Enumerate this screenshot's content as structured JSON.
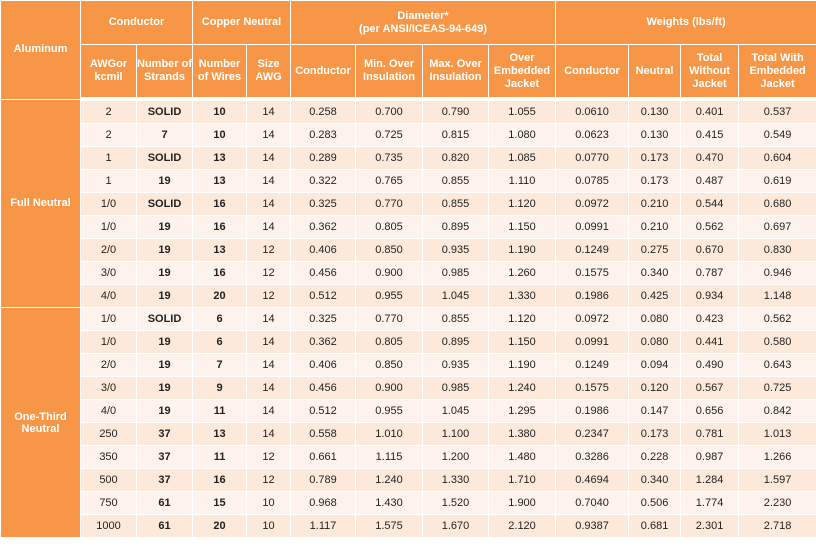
{
  "table": {
    "header": {
      "corner": "Aluminum",
      "groups": [
        "Conductor",
        "Copper Neutral",
        "Diameter*",
        "Weights (lbs/ft)"
      ],
      "diameter_note": "(per ANSI/ICEAS-94-649)",
      "columns": [
        "AWGor kcmil",
        "Number of Strands",
        "Number of Wires",
        "Size AWG",
        "Conductor",
        "Min. Over Insulation",
        "Max. Over Insulation",
        "Over Embedded Jacket",
        "Conductor",
        "Neutral",
        "Total Without Jacket",
        "Total With Embedded Jacket"
      ]
    },
    "sections": [
      {
        "label": "Full Neutral",
        "rows": [
          [
            "2",
            "SOLID",
            "10",
            "14",
            "0.258",
            "0.700",
            "0.790",
            "1.055",
            "0.0610",
            "0.130",
            "0.401",
            "0.537"
          ],
          [
            "2",
            "7",
            "10",
            "14",
            "0.283",
            "0.725",
            "0.815",
            "1.080",
            "0.0623",
            "0.130",
            "0.415",
            "0.549"
          ],
          [
            "1",
            "SOLID",
            "13",
            "14",
            "0.289",
            "0.735",
            "0.820",
            "1.085",
            "0.0770",
            "0.173",
            "0.470",
            "0.604"
          ],
          [
            "1",
            "19",
            "13",
            "14",
            "0.322",
            "0.765",
            "0.855",
            "1.110",
            "0.0785",
            "0.173",
            "0.487",
            "0.619"
          ],
          [
            "1/0",
            "SOLID",
            "16",
            "14",
            "0.325",
            "0.770",
            "0.855",
            "1.120",
            "0.0972",
            "0.210",
            "0.544",
            "0.680"
          ],
          [
            "1/0",
            "19",
            "16",
            "14",
            "0.362",
            "0.805",
            "0.895",
            "1.150",
            "0.0991",
            "0.210",
            "0.562",
            "0.697"
          ],
          [
            "2/0",
            "19",
            "13",
            "12",
            "0.406",
            "0.850",
            "0.935",
            "1.190",
            "0.1249",
            "0.275",
            "0.670",
            "0.830"
          ],
          [
            "3/0",
            "19",
            "16",
            "12",
            "0.456",
            "0.900",
            "0.985",
            "1.260",
            "0.1575",
            "0.340",
            "0.787",
            "0.946"
          ],
          [
            "4/0",
            "19",
            "20",
            "12",
            "0.512",
            "0.955",
            "1.045",
            "1.330",
            "0.1986",
            "0.425",
            "0.934",
            "1.148"
          ]
        ]
      },
      {
        "label": "One-Third Neutral",
        "rows": [
          [
            "1/0",
            "SOLID",
            "6",
            "14",
            "0.325",
            "0.770",
            "0.855",
            "1.120",
            "0.0972",
            "0.080",
            "0.423",
            "0.562"
          ],
          [
            "1/0",
            "19",
            "6",
            "14",
            "0.362",
            "0.805",
            "0.895",
            "1.150",
            "0.0991",
            "0.080",
            "0.441",
            "0.580"
          ],
          [
            "2/0",
            "19",
            "7",
            "14",
            "0.406",
            "0.850",
            "0.935",
            "1.190",
            "0.1249",
            "0.094",
            "0.490",
            "0.643"
          ],
          [
            "3/0",
            "19",
            "9",
            "14",
            "0.456",
            "0.900",
            "0.985",
            "1.240",
            "0.1575",
            "0.120",
            "0.567",
            "0.725"
          ],
          [
            "4/0",
            "19",
            "11",
            "14",
            "0.512",
            "0.955",
            "1.045",
            "1.295",
            "0.1986",
            "0.147",
            "0.656",
            "0.842"
          ],
          [
            "250",
            "37",
            "13",
            "14",
            "0.558",
            "1.010",
            "1.100",
            "1.380",
            "0.2347",
            "0.173",
            "0.781",
            "1.013"
          ],
          [
            "350",
            "37",
            "11",
            "12",
            "0.661",
            "1.115",
            "1.200",
            "1.480",
            "0.3286",
            "0.228",
            "0.987",
            "1.266"
          ],
          [
            "500",
            "37",
            "16",
            "12",
            "0.789",
            "1.240",
            "1.330",
            "1.710",
            "0.4694",
            "0.340",
            "1.284",
            "1.597"
          ],
          [
            "750",
            "61",
            "15",
            "10",
            "0.968",
            "1.430",
            "1.520",
            "1.900",
            "0.7040",
            "0.506",
            "1.774",
            "2.230"
          ],
          [
            "1000",
            "61",
            "20",
            "10",
            "1.117",
            "1.575",
            "1.670",
            "2.120",
            "0.9387",
            "0.681",
            "2.301",
            "2.718"
          ]
        ]
      }
    ]
  }
}
